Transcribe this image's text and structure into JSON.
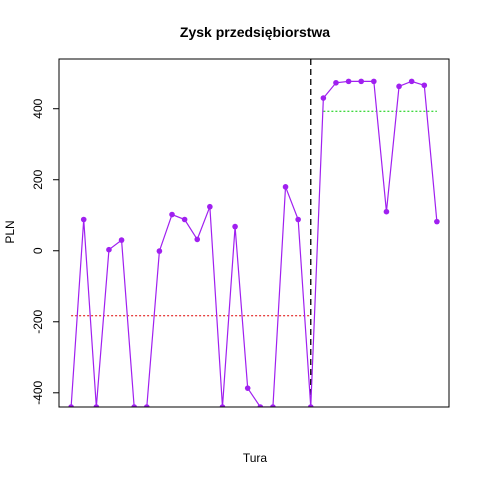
{
  "chart_data": {
    "type": "line",
    "title": "Zysk przedsiębiorstwa",
    "xlabel": "Tura",
    "ylabel": "PLN",
    "xlim": [
      0.04,
      30.96
    ],
    "ylim": [
      -440,
      540
    ],
    "yticks": [
      -400,
      -200,
      0,
      200,
      400
    ],
    "ytick_labels": [
      "-400",
      "-200",
      "0",
      "200",
      "400"
    ],
    "show_x_ticks": false,
    "series": [
      {
        "color": "#a020f0",
        "x": [
          1,
          2,
          3,
          4,
          5,
          6,
          7,
          8,
          9,
          10,
          11,
          12,
          13,
          14,
          15,
          16,
          17,
          18,
          19,
          20,
          21,
          22,
          23,
          24,
          25,
          26,
          27,
          28,
          29,
          30
        ],
        "y": [
          -440,
          88,
          -440,
          3,
          30,
          -440,
          -440,
          -1,
          102,
          88,
          32,
          124,
          -440,
          68,
          -387,
          -440,
          -440,
          180,
          88,
          -440,
          430,
          473,
          477,
          477,
          477,
          110,
          463,
          477,
          466,
          82
        ]
      }
    ],
    "reference_lines": [
      {
        "kind": "hline",
        "y": -183,
        "x_from": 1,
        "x_to": 20,
        "color": "#dd0000",
        "style": "dotted"
      },
      {
        "kind": "hline",
        "y": 393,
        "x_from": 21,
        "x_to": 30,
        "color": "#00cc00",
        "style": "dotted"
      },
      {
        "kind": "vline",
        "x": 20,
        "color": "#000000",
        "style": "dashed"
      }
    ]
  }
}
